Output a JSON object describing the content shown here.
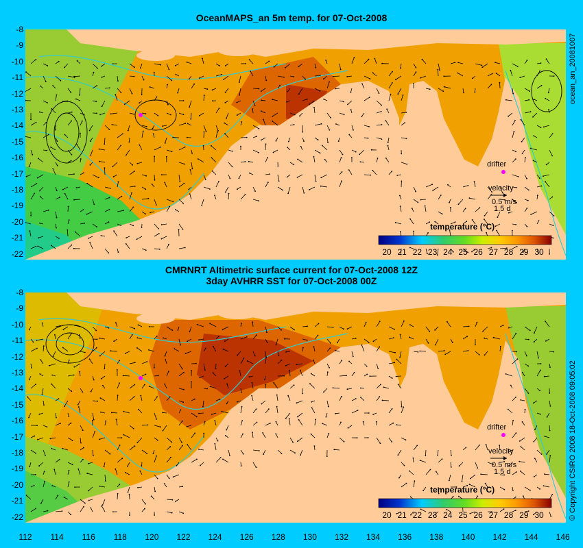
{
  "top_panel": {
    "title": "OceanMAPS_an 5m temp. for 07-Oct-2008",
    "side_label": "ocean_an_20081007",
    "legend_title": "temperature (°C)",
    "drifter_label": "drifter",
    "velocity_label": "velocity",
    "velocity_scale": "0.5 m/s",
    "velocity_days": "1.5 d"
  },
  "bottom_panel": {
    "title_line1": "CMRNRT Altimetric surface current for 07-Oct-2008 12Z",
    "title_line2": "3day AVHRR SST for 07-Oct-2008 00Z",
    "side_label": "© Copyright CSIRO 2008   18-Oct-2008 09:05:02",
    "legend_title": "temperature (°C)",
    "drifter_label": "drifter",
    "velocity_label": "velocity",
    "velocity_scale": "0.5 m/s",
    "velocity_days": "1.5 d"
  },
  "lat_ticks": [
    "-8",
    "-9",
    "-10",
    "-11",
    "-12",
    "-13",
    "-14",
    "-15",
    "-16",
    "-17",
    "-18",
    "-19",
    "-20",
    "-21",
    "-22"
  ],
  "lon_ticks": [
    "112",
    "114",
    "116",
    "118",
    "120",
    "122",
    "124",
    "126",
    "128",
    "130",
    "132",
    "134",
    "136",
    "138",
    "140",
    "142",
    "144",
    "146"
  ],
  "colorbar_ticks": [
    "20",
    "21",
    "22",
    "23",
    "24",
    "25",
    "26",
    "27",
    "28",
    "29",
    "30"
  ],
  "colors": {
    "background": "#00ccff",
    "land": "#ffcc99",
    "contour": "#33cccc",
    "drifter": "#ff00ff"
  }
}
